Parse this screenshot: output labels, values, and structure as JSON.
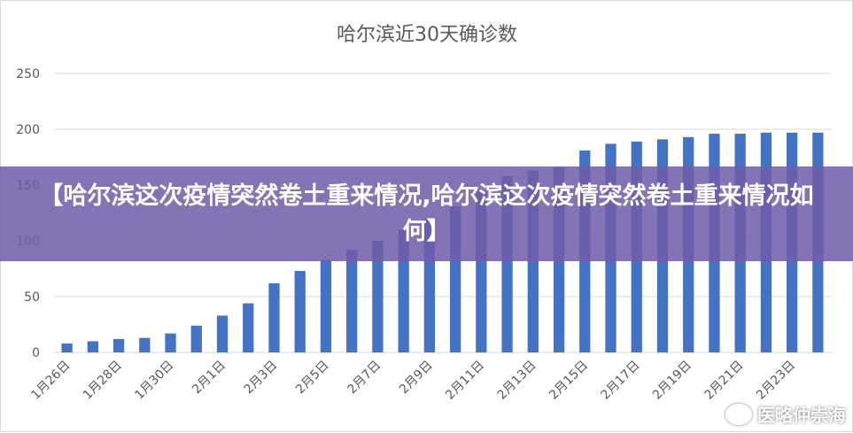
{
  "chart_data": {
    "type": "bar",
    "title": "哈尔滨近30天确诊数",
    "xlabel": "",
    "ylabel": "",
    "ylim": [
      0,
      250
    ],
    "yticks": [
      0,
      50,
      100,
      150,
      200,
      250
    ],
    "grid": true,
    "legend": "none",
    "bar_color": "#4472c4",
    "categories": [
      "1月26日",
      "1月27日",
      "1月28日",
      "1月29日",
      "1月30日",
      "1月31日",
      "2月1日",
      "2月2日",
      "2月3日",
      "2月4日",
      "2月5日",
      "2月6日",
      "2月7日",
      "2月8日",
      "2月9日",
      "2月10日",
      "2月11日",
      "2月12日",
      "2月13日",
      "2月14日",
      "2月15日",
      "2月16日",
      "2月17日",
      "2月18日",
      "2月19日",
      "2月20日",
      "2月21日",
      "2月22日",
      "2月23日",
      "2月24日"
    ],
    "values": [
      8,
      10,
      12,
      13,
      17,
      24,
      33,
      44,
      62,
      73,
      83,
      92,
      100,
      110,
      120,
      131,
      145,
      158,
      163,
      166,
      181,
      187,
      189,
      191,
      193,
      196,
      196,
      197,
      197,
      197
    ],
    "shown_tick_labels": [
      "1月26日",
      "1月28日",
      "1月30日",
      "2月1日",
      "2月3日",
      "2月5日",
      "2月7日",
      "2月9日",
      "2月11日",
      "2月13日",
      "2月15日",
      "2月17日",
      "2月19日",
      "2月21日",
      "2月23日"
    ]
  },
  "overlay": {
    "headline": "【哈尔滨这次疫情突然卷土重来情况,哈尔滨这次疫情突然卷土重来情况如何】",
    "color": "#705ca8"
  },
  "watermark": {
    "text": "医略仲崇海"
  }
}
